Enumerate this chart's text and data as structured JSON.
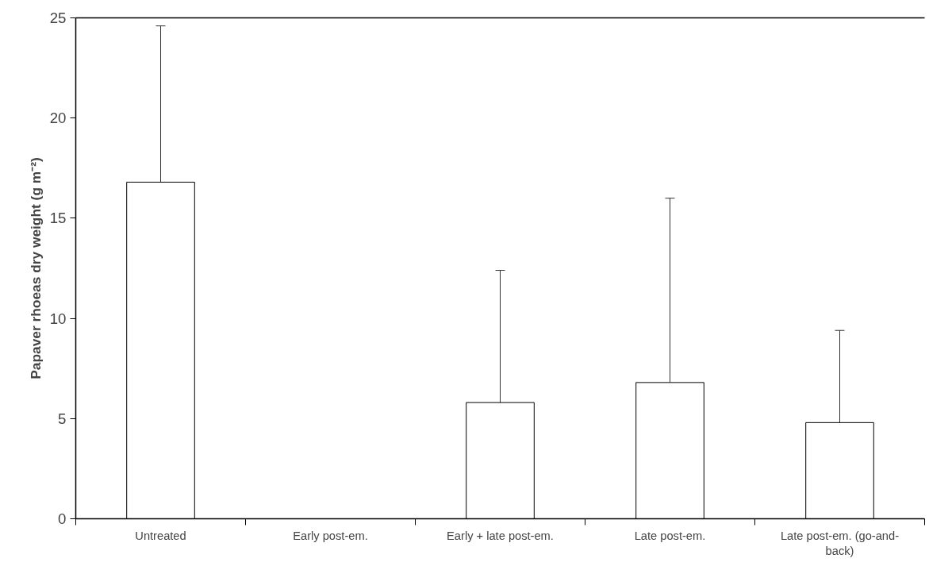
{
  "chart_data": {
    "type": "bar",
    "ylabel": "Papaver rhoeas dry weight (g m⁻²)",
    "categories": [
      "Untreated",
      "Early post-em.",
      "Early + late post-em.",
      "Late post-em.",
      "Late post-em. (go-and-back)"
    ],
    "values": [
      16.8,
      0,
      5.8,
      6.8,
      4.8
    ],
    "errors": [
      [
        16.8,
        24.6
      ],
      null,
      [
        5.8,
        12.4
      ],
      [
        6.8,
        16.0
      ],
      [
        4.8,
        9.4
      ]
    ],
    "color": "#ffffff",
    "ylim": [
      0,
      25
    ],
    "yticks": [
      0,
      5,
      10,
      15,
      20,
      25
    ],
    "grid": false
  }
}
